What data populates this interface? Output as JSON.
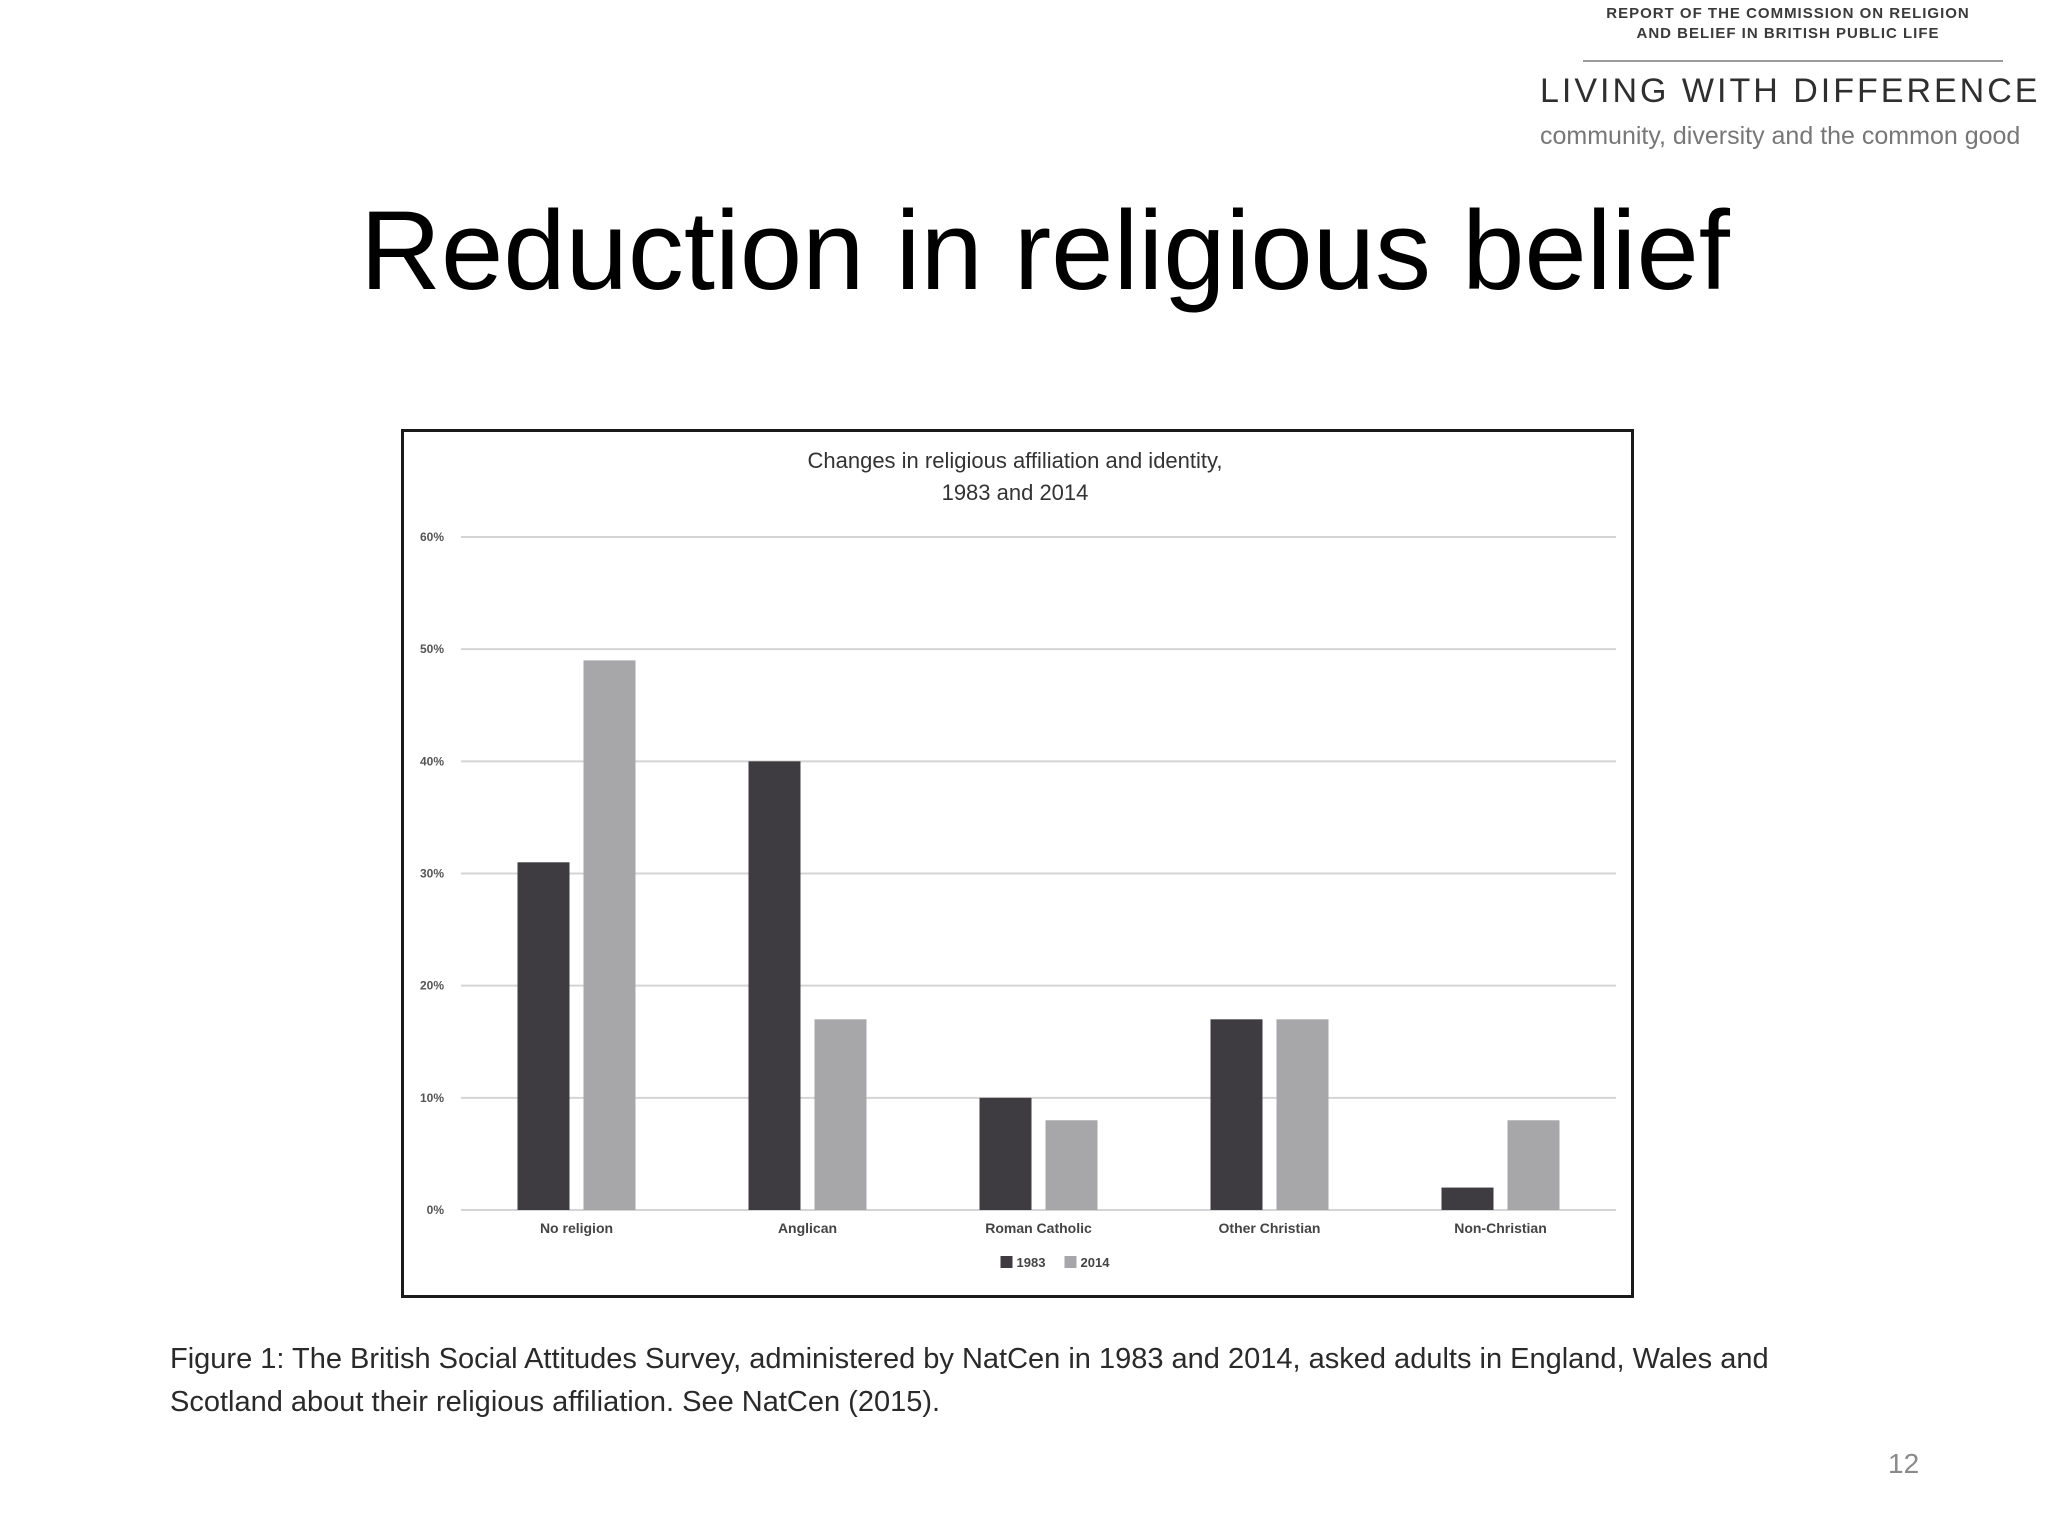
{
  "logo": {
    "report_line1": "REPORT OF THE COMMISSION ON RELIGION",
    "report_line2": "AND BELIEF IN BRITISH PUBLIC LIFE",
    "main": "LIVING WITH DIFFERENCE",
    "sub": "community, diversity and the common good"
  },
  "slide": {
    "title": "Reduction in religious belief",
    "number": "12"
  },
  "caption": {
    "line1": "Figure 1: The British Social Attitudes Survey, administered by NatCen in 1983 and 2014, asked adults in England, Wales and",
    "line2": "Scotland about their religious affiliation. See NatCen (2015)."
  },
  "colors": {
    "series_1983": "#3e3c40",
    "series_2014": "#a7a6a9",
    "gridline": "#d4d4d4"
  },
  "chart_data": {
    "type": "bar",
    "title_line1": "Changes in religious affiliation and identity,",
    "title_line2": "1983 and 2014",
    "categories": [
      "No religion",
      "Anglican",
      "Roman Catholic",
      "Other Christian",
      "Non-Christian"
    ],
    "series": [
      {
        "name": "1983",
        "values": [
          31,
          40,
          10,
          17,
          2
        ]
      },
      {
        "name": "2014",
        "values": [
          49,
          17,
          8,
          17,
          8
        ]
      }
    ],
    "y_ticks": [
      "0%",
      "10%",
      "20%",
      "30%",
      "40%",
      "50%",
      "60%"
    ],
    "ylim": [
      0,
      60
    ],
    "grid": true,
    "legend_position": "bottom"
  }
}
